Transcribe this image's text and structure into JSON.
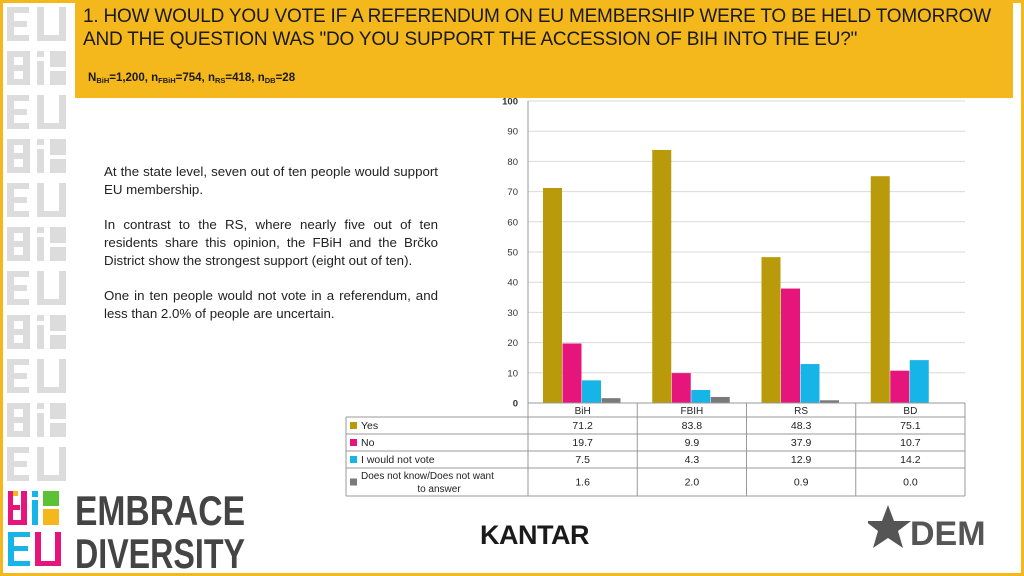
{
  "header": {
    "title": "1. HOW WOULD YOU VOTE IF A REFERENDUM ON EU MEMBERSHIP WERE TO BE HELD TOMORROW AND THE QUESTION WAS \"DO YOU SUPPORT THE ACCESSION OF BIH INTO THE EU?\"",
    "sample": {
      "n1": "N",
      "s1": "BiH",
      "v1": "=1,200, ",
      "n2": "n",
      "s2": "FBiH",
      "v2": "=754, ",
      "n3": "n",
      "s3": "RS",
      "v3": "=418, ",
      "n4": "n",
      "s4": "DB",
      "v4": "=28"
    }
  },
  "body_text": {
    "p1": "At the state level, seven out of ten people would support EU membership.",
    "p2": "In contrast to the RS, where nearly five out of ten residents share this opinion, the FBiH and the Brčko District show the strongest support (eight out of ten).",
    "p3": "One in ten people would not vote in a referendum, and less than 2.0% of people are uncertain."
  },
  "logos": {
    "left_line1": "EMBRACE",
    "left_line2": "DIVERSITY",
    "center": "KANTAR",
    "right": "DEM"
  },
  "colors": {
    "accent": "#f4b81d",
    "yes": "#b99a0a",
    "no": "#e5157b",
    "not_vote": "#17b4e8",
    "dont_know": "#7a7a7a"
  },
  "chart_data": {
    "type": "bar",
    "categories": [
      "BiH",
      "FBIH",
      "RS",
      "BD"
    ],
    "series": [
      {
        "name": "Yes",
        "values": [
          71.2,
          83.8,
          48.3,
          75.1
        ],
        "display": [
          "71.2",
          "83.8",
          "48.3",
          "75.1"
        ],
        "color": "#b99a0a"
      },
      {
        "name": "No",
        "values": [
          19.7,
          9.9,
          37.9,
          10.7
        ],
        "display": [
          "19.7",
          "9.9",
          "37.9",
          "10.7"
        ],
        "color": "#e5157b"
      },
      {
        "name": "I would not vote",
        "values": [
          7.5,
          4.3,
          12.9,
          14.2
        ],
        "display": [
          "7.5",
          "4.3",
          "12.9",
          "14.2"
        ],
        "color": "#17b4e8"
      },
      {
        "name": "Does not know/Does not want to answer",
        "values": [
          1.6,
          2.0,
          0.9,
          0.0
        ],
        "display": [
          "1.6",
          "2.0",
          "0.9",
          "0.0"
        ],
        "color": "#7a7a7a"
      }
    ],
    "yticks": [
      "0",
      "10",
      "20",
      "30",
      "40",
      "50",
      "60",
      "70",
      "80",
      "90",
      "100"
    ],
    "ylim": [
      0,
      100
    ],
    "grid": true,
    "legend": "data-table-below"
  }
}
